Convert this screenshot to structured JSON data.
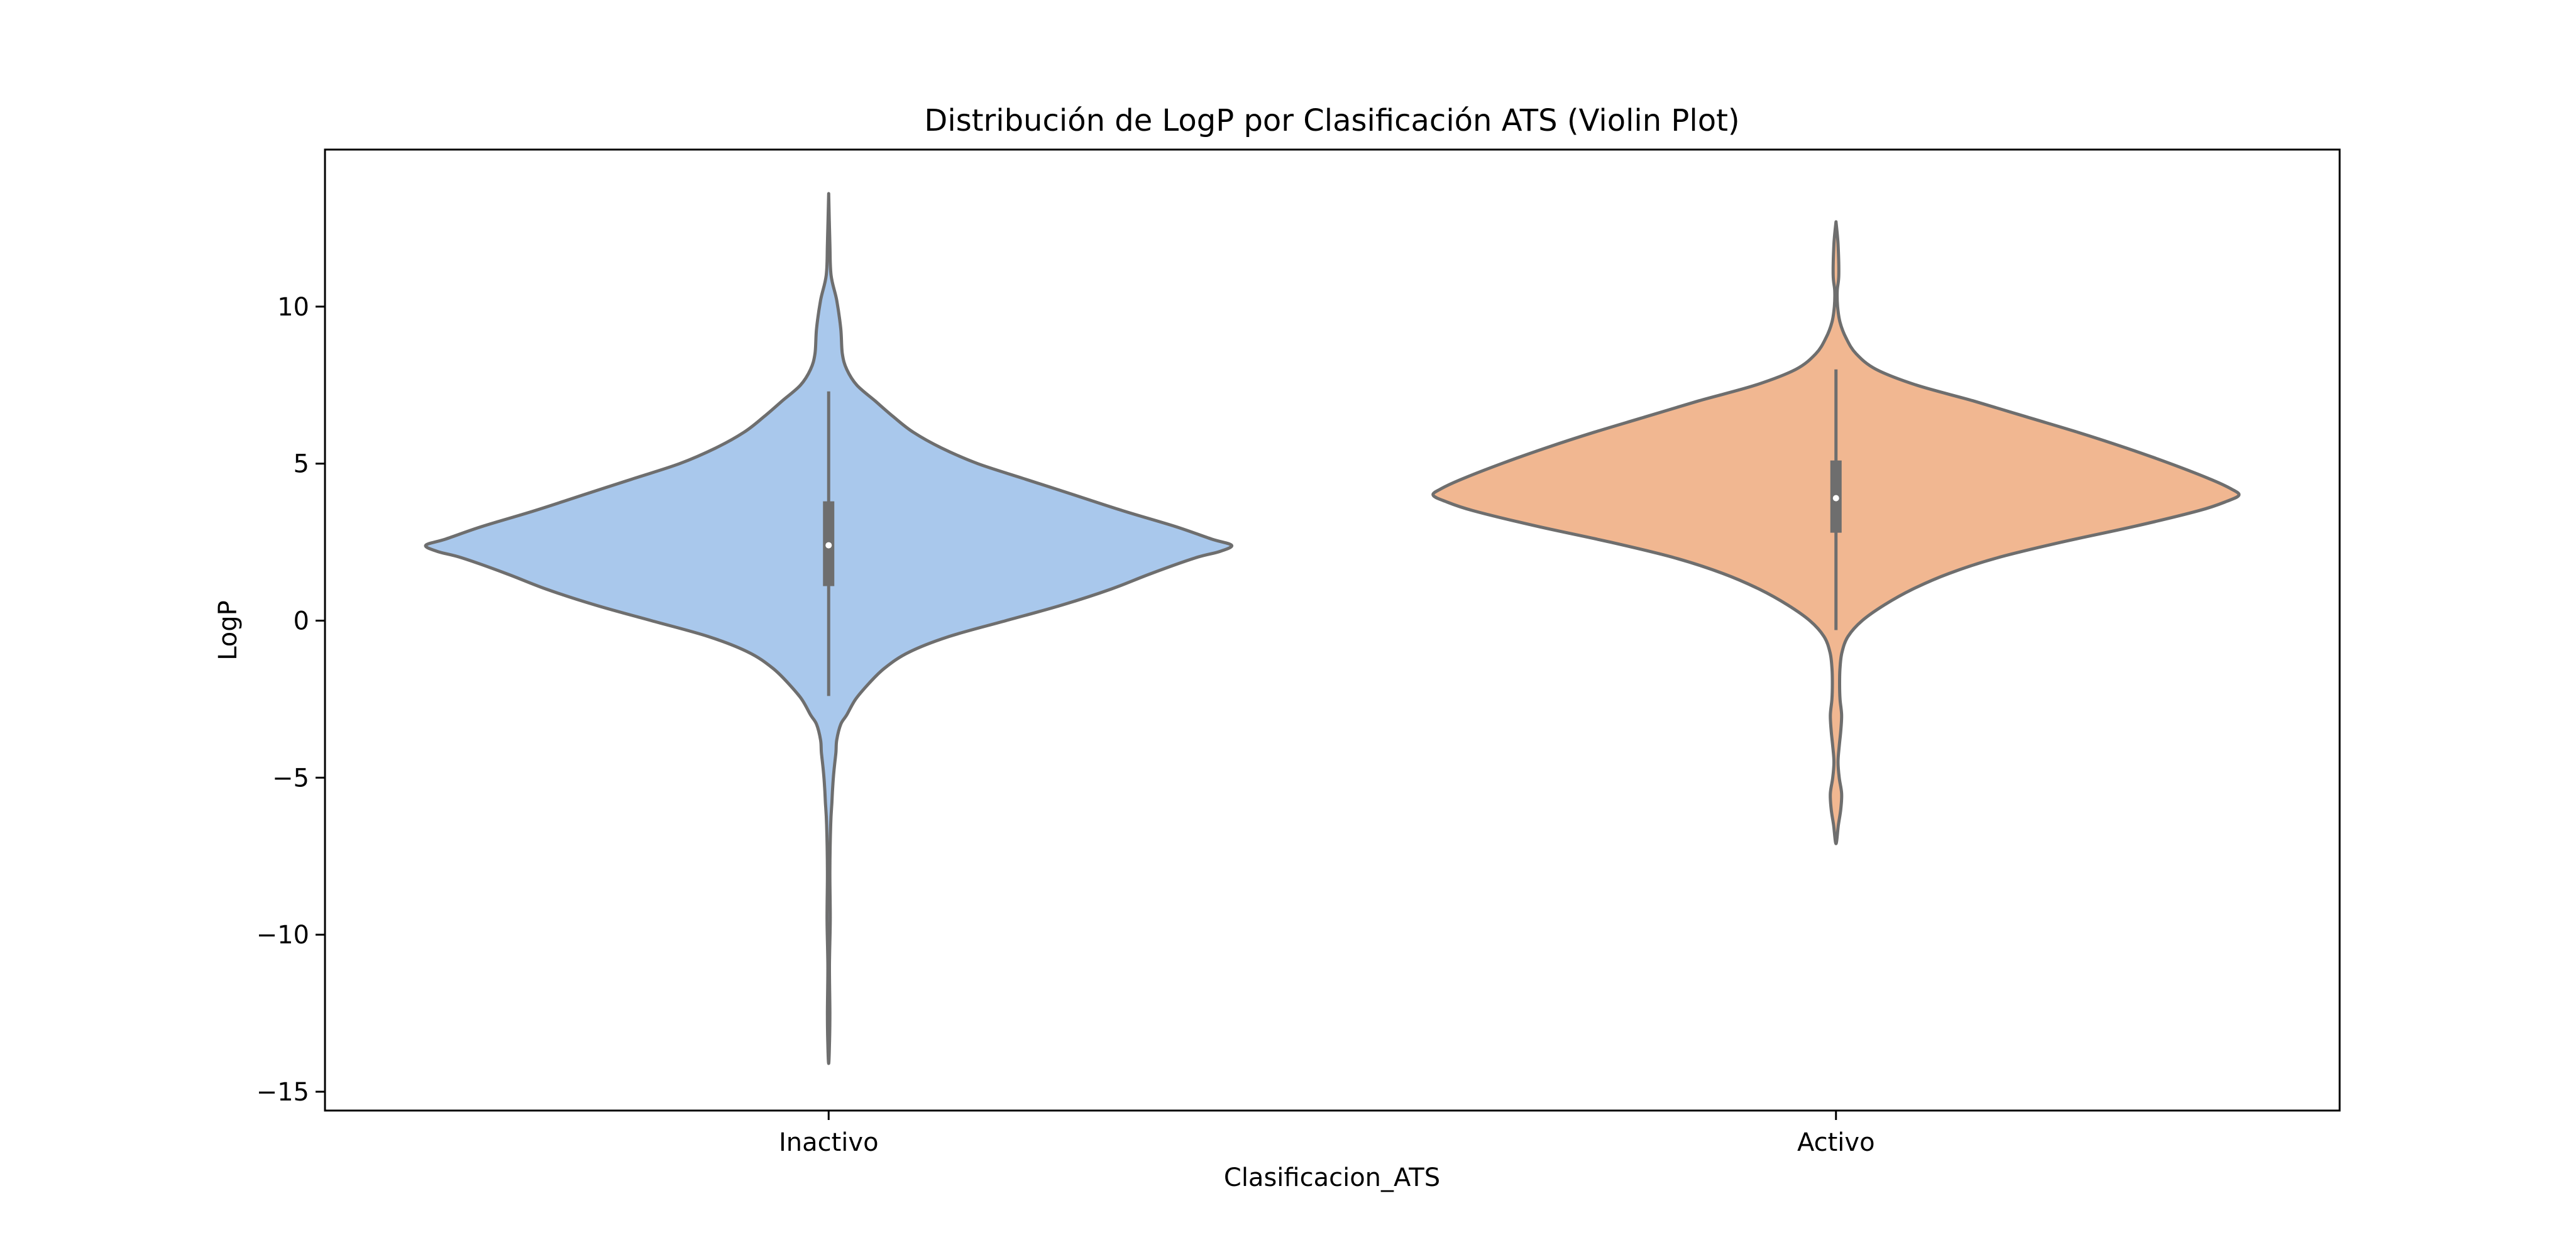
{
  "chart_data": {
    "type": "violin",
    "title": "Distribución de LogP por Clasificación ATS (Violin Plot)",
    "xlabel": "Clasificacion_ATS",
    "ylabel": "LogP",
    "categories": [
      "Inactivo",
      "Activo"
    ],
    "ylim": [
      -15.6,
      15.0
    ],
    "yticks": [
      {
        "value": 10,
        "label": "10"
      },
      {
        "value": 5,
        "label": "5"
      },
      {
        "value": 0,
        "label": "0"
      },
      {
        "value": -5,
        "label": "−5"
      },
      {
        "value": -10,
        "label": "−10"
      },
      {
        "value": -15,
        "label": "−15"
      }
    ],
    "grid": false,
    "series": [
      {
        "name": "Inactivo",
        "color": "#a9c8ec",
        "min": -14.1,
        "max": 13.6,
        "q1": 1.1,
        "median": 2.4,
        "q3": 3.8,
        "whisker_low": -2.4,
        "whisker_high": 7.3,
        "density_profile": [
          [
            13.6,
            0.0
          ],
          [
            12.0,
            0.003
          ],
          [
            11.0,
            0.006
          ],
          [
            10.2,
            0.02
          ],
          [
            9.3,
            0.03
          ],
          [
            8.5,
            0.034
          ],
          [
            8.0,
            0.045
          ],
          [
            7.5,
            0.07
          ],
          [
            7.0,
            0.115
          ],
          [
            6.5,
            0.16
          ],
          [
            6.0,
            0.21
          ],
          [
            5.5,
            0.28
          ],
          [
            5.0,
            0.37
          ],
          [
            4.5,
            0.49
          ],
          [
            4.0,
            0.61
          ],
          [
            3.5,
            0.73
          ],
          [
            3.0,
            0.86
          ],
          [
            2.6,
            0.95
          ],
          [
            2.4,
            1.0
          ],
          [
            2.2,
            0.97
          ],
          [
            2.0,
            0.91
          ],
          [
            1.5,
            0.8
          ],
          [
            1.0,
            0.7
          ],
          [
            0.5,
            0.58
          ],
          [
            0.0,
            0.44
          ],
          [
            -0.5,
            0.3
          ],
          [
            -1.0,
            0.2
          ],
          [
            -1.5,
            0.14
          ],
          [
            -2.0,
            0.1
          ],
          [
            -2.5,
            0.067
          ],
          [
            -3.0,
            0.045
          ],
          [
            -3.3,
            0.03
          ],
          [
            -3.8,
            0.02
          ],
          [
            -4.2,
            0.018
          ],
          [
            -4.8,
            0.013
          ],
          [
            -5.3,
            0.01
          ],
          [
            -5.8,
            0.008
          ],
          [
            -6.5,
            0.005
          ],
          [
            -8.0,
            0.003
          ],
          [
            -9.5,
            0.004
          ],
          [
            -11.0,
            0.002
          ],
          [
            -12.5,
            0.003
          ],
          [
            -13.5,
            0.002
          ],
          [
            -14.1,
            0.0
          ]
        ]
      },
      {
        "name": "Activo",
        "color": "#f1b791",
        "min": -7.1,
        "max": 12.7,
        "q1": 2.8,
        "median": 3.9,
        "q3": 5.1,
        "whisker_low": -0.3,
        "whisker_high": 8.0,
        "density_profile": [
          [
            12.7,
            0.0
          ],
          [
            12.0,
            0.005
          ],
          [
            11.0,
            0.007
          ],
          [
            10.5,
            0.003
          ],
          [
            10.0,
            0.004
          ],
          [
            9.5,
            0.01
          ],
          [
            9.0,
            0.025
          ],
          [
            8.5,
            0.05
          ],
          [
            8.0,
            0.1
          ],
          [
            7.5,
            0.2
          ],
          [
            7.0,
            0.34
          ],
          [
            6.5,
            0.47
          ],
          [
            6.0,
            0.6
          ],
          [
            5.5,
            0.72
          ],
          [
            5.0,
            0.83
          ],
          [
            4.5,
            0.93
          ],
          [
            4.2,
            0.98
          ],
          [
            4.0,
            1.0
          ],
          [
            3.8,
            0.97
          ],
          [
            3.5,
            0.9
          ],
          [
            3.0,
            0.74
          ],
          [
            2.5,
            0.56
          ],
          [
            2.0,
            0.4
          ],
          [
            1.5,
            0.28
          ],
          [
            1.0,
            0.19
          ],
          [
            0.5,
            0.12
          ],
          [
            0.0,
            0.065
          ],
          [
            -0.5,
            0.03
          ],
          [
            -1.0,
            0.015
          ],
          [
            -1.5,
            0.01
          ],
          [
            -2.0,
            0.009
          ],
          [
            -2.5,
            0.01
          ],
          [
            -3.0,
            0.014
          ],
          [
            -3.5,
            0.012
          ],
          [
            -4.0,
            0.008
          ],
          [
            -4.5,
            0.005
          ],
          [
            -5.0,
            0.008
          ],
          [
            -5.5,
            0.014
          ],
          [
            -6.0,
            0.012
          ],
          [
            -6.5,
            0.006
          ],
          [
            -7.1,
            0.0
          ]
        ]
      }
    ]
  }
}
